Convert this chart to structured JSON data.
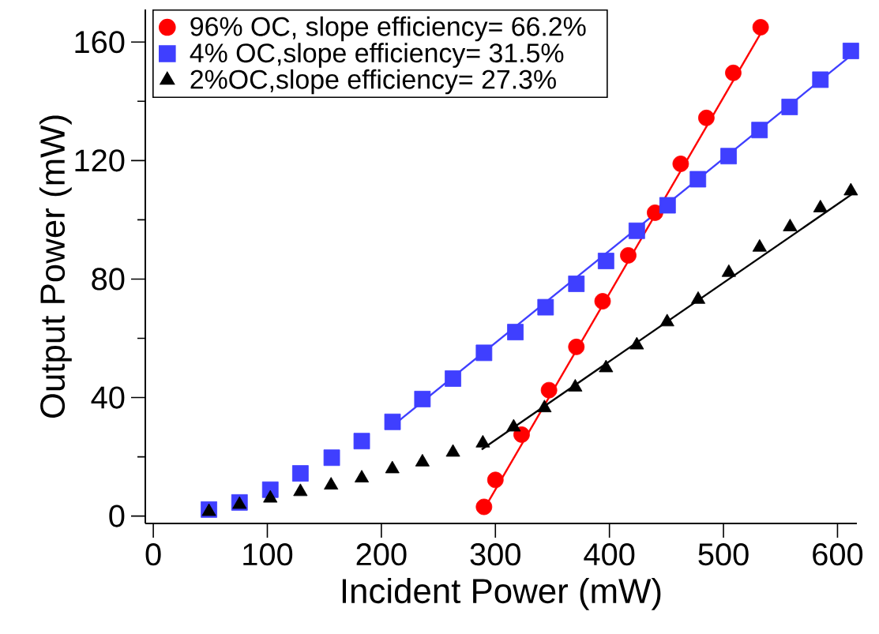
{
  "chart_data": {
    "type": "scatter",
    "xlabel": "Incident Power (mW)",
    "ylabel": "Output Power (mW)",
    "xlim": [
      -7,
      617
    ],
    "ylim": [
      -2.5,
      171
    ],
    "xticks": [
      0,
      100,
      200,
      300,
      400,
      500,
      600
    ],
    "yticks": [
      0,
      {
        "value": 20,
        "label": null
      },
      40,
      {
        "value": 60,
        "label": null
      },
      80,
      {
        "value": 100,
        "label": null
      },
      120,
      {
        "value": 140,
        "label": null
      },
      160
    ],
    "legend": "top left",
    "series": [
      {
        "name": "96% OC, slope efficiency= 66.2%",
        "marker": "circle",
        "color": "#ff0000",
        "x": [
          290,
          300,
          323,
          347,
          371,
          394,
          416.5,
          440,
          462.5,
          485,
          508.6,
          532.6
        ],
        "values": [
          3.1,
          12.2,
          27.5,
          42.5,
          57.1,
          72.5,
          88,
          102.4,
          118.9,
          134.4,
          149.6,
          165
        ]
      },
      {
        "name": "4% OC,slope efficiency= 31.5%",
        "marker": "square",
        "color": "#3f3fff",
        "x": [
          48.8,
          75.6,
          102.6,
          129,
          156.5,
          182.8,
          209.8,
          236,
          262.8,
          290,
          317.5,
          344,
          371,
          397,
          424,
          451,
          477.6,
          504.5,
          531.6,
          558,
          585,
          611.7
        ],
        "values": [
          2.2,
          4.6,
          8.9,
          14.4,
          19.7,
          25.3,
          31.8,
          39.5,
          46.4,
          55.1,
          62.1,
          70.5,
          78.4,
          86.1,
          96.3,
          104.9,
          113.7,
          121.5,
          130.3,
          138.1,
          147.3,
          157
        ]
      },
      {
        "name": "2%OC,slope efficiency= 27.3%",
        "marker": "triangle",
        "color": "#000000",
        "x": [
          48.8,
          75.6,
          102.6,
          129,
          155.9,
          182.8,
          209.6,
          236,
          262.8,
          289,
          316,
          343,
          370,
          397,
          424,
          450.6,
          477.8,
          504.7,
          531.7,
          558.4,
          585,
          611.7
        ],
        "values": [
          1.5,
          3.9,
          6,
          8.2,
          10.4,
          12.8,
          15.9,
          18.2,
          21.5,
          24.6,
          30,
          36.5,
          43.5,
          50,
          57.7,
          65.5,
          73.1,
          82.2,
          90.7,
          97.6,
          104,
          109.7
        ]
      },
      {
        "type": "line",
        "color": "#ff0000",
        "x": [
          288,
          535
        ],
        "values": [
          1,
          164.5
        ]
      },
      {
        "type": "line",
        "color": "#3f3fff",
        "x": [
          210,
          612
        ],
        "values": [
          30.5,
          155.5
        ]
      },
      {
        "type": "line",
        "color": "#000000",
        "x": [
          288,
          614
        ],
        "values": [
          22.5,
          109
        ]
      }
    ]
  }
}
